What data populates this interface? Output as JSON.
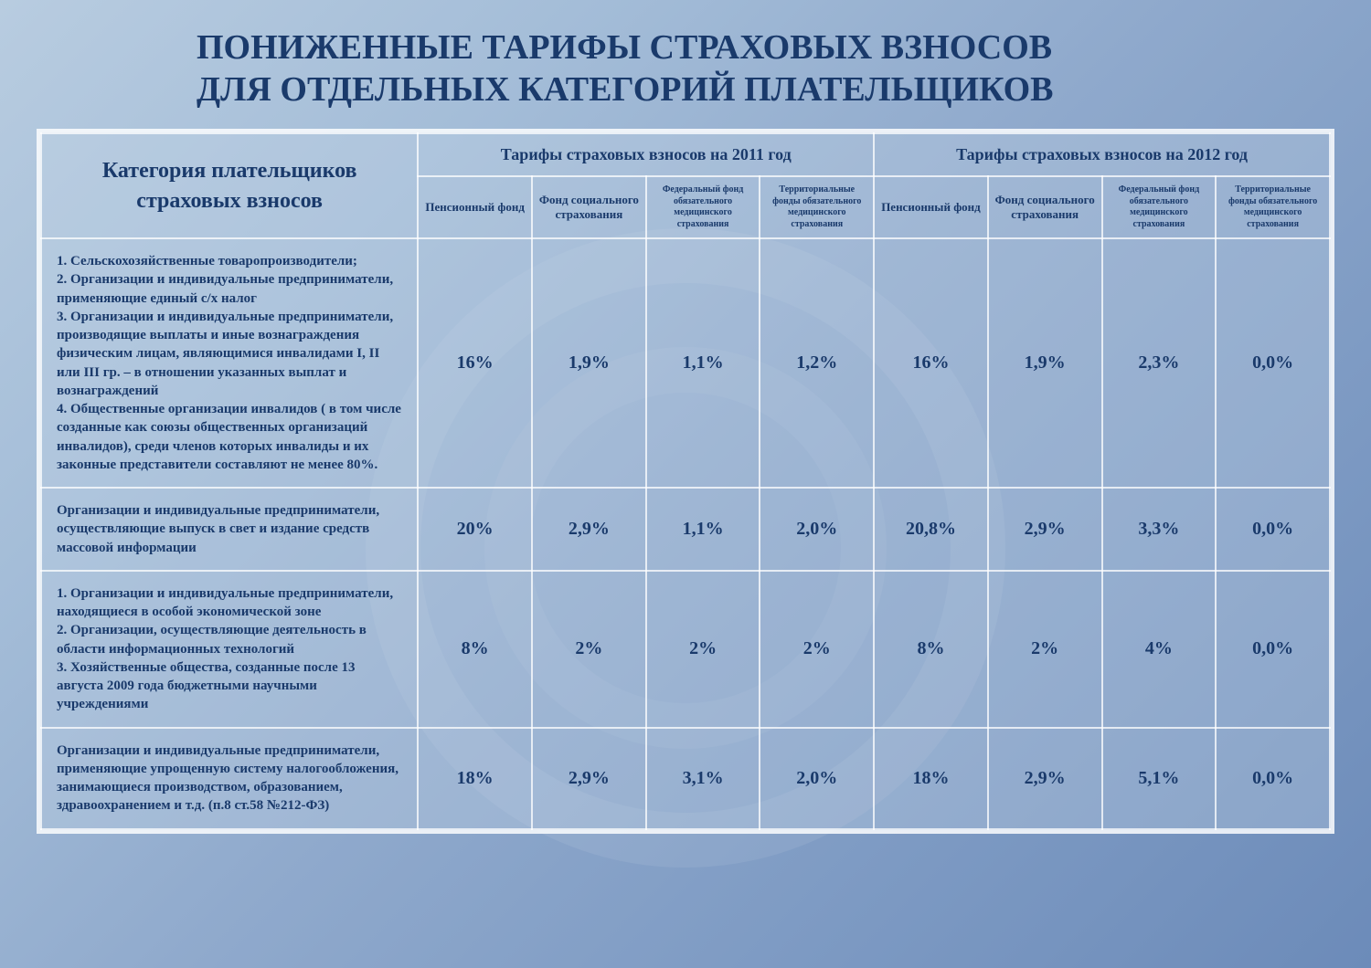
{
  "title_line1": "ПОНИЖЕННЫЕ ТАРИФЫ СТРАХОВЫХ ВЗНОСОВ",
  "title_line2": "ДЛЯ ОТДЕЛЬНЫХ КАТЕГОРИЙ ПЛАТЕЛЬЩИКОВ",
  "title_fontsize": "38px",
  "colors": {
    "text": "#1a3a6b",
    "border": "rgba(255,255,255,0.75)",
    "bg_start": "#b8cce0",
    "bg_end": "#6c8bb9"
  },
  "header": {
    "category": "Категория плательщиков страховых взносов",
    "category_fontsize": "24px",
    "year2011": "Тарифы страховых взносов на 2011 год",
    "year2012": "Тарифы страховых взносов на 2012 год",
    "year_fontsize": "18px",
    "sub_fontsize_main": "13px",
    "sub_fontsize_small": "10px",
    "sub": [
      "Пенсионный фонд",
      "Фонд социального страхования",
      "Федеральный фонд обязательного медицинского страхования",
      "Территориальные фонды обязательного медицинского страхования"
    ]
  },
  "body_fontsize_cat": "15px",
  "body_fontsize_val": "20px",
  "rows": [
    {
      "category": "1. Сельскохозяйственные товаропроизводители;\n2. Организации и индивидуальные предприниматели, применяющие единый с/х налог\n3. Организации и индивидуальные предприниматели,  производящие выплаты и иные вознаграждения физическим лицам, являющимися инвалидами I, II или III  гр. – в отношении указанных выплат и вознаграждений\n4. Общественные организации инвалидов ( в том числе созданные как союзы общественных организаций инвалидов), среди членов которых инвалиды и их законные представители составляют не менее 80%.",
      "v": [
        "16%",
        "1,9%",
        "1,1%",
        "1,2%",
        "16%",
        "1,9%",
        "2,3%",
        "0,0%"
      ]
    },
    {
      "category": "Организации и индивидуальные предприниматели, осуществляющие выпуск в свет и издание средств массовой информации",
      "v": [
        "20%",
        "2,9%",
        "1,1%",
        "2,0%",
        "20,8%",
        "2,9%",
        "3,3%",
        "0,0%"
      ]
    },
    {
      "category": "1. Организации и индивидуальные предприниматели, находящиеся в особой экономической зоне\n2. Организации, осуществляющие деятельность в области информационных технологий\n3. Хозяйственные общества, созданные после 13 августа 2009 года бюджетными научными учреждениями",
      "v": [
        "8%",
        "2%",
        "2%",
        "2%",
        "8%",
        "2%",
        "4%",
        "0,0%"
      ]
    },
    {
      "category": "Организации и индивидуальные предприниматели, применяющие упрощенную систему налогообложения, занимающиеся производством, образованием, здравоохранением и т.д. (п.8 ст.58  №212-ФЗ)",
      "v": [
        "18%",
        "2,9%",
        "3,1%",
        "2,0%",
        "18%",
        "2,9%",
        "5,1%",
        "0,0%"
      ]
    }
  ]
}
